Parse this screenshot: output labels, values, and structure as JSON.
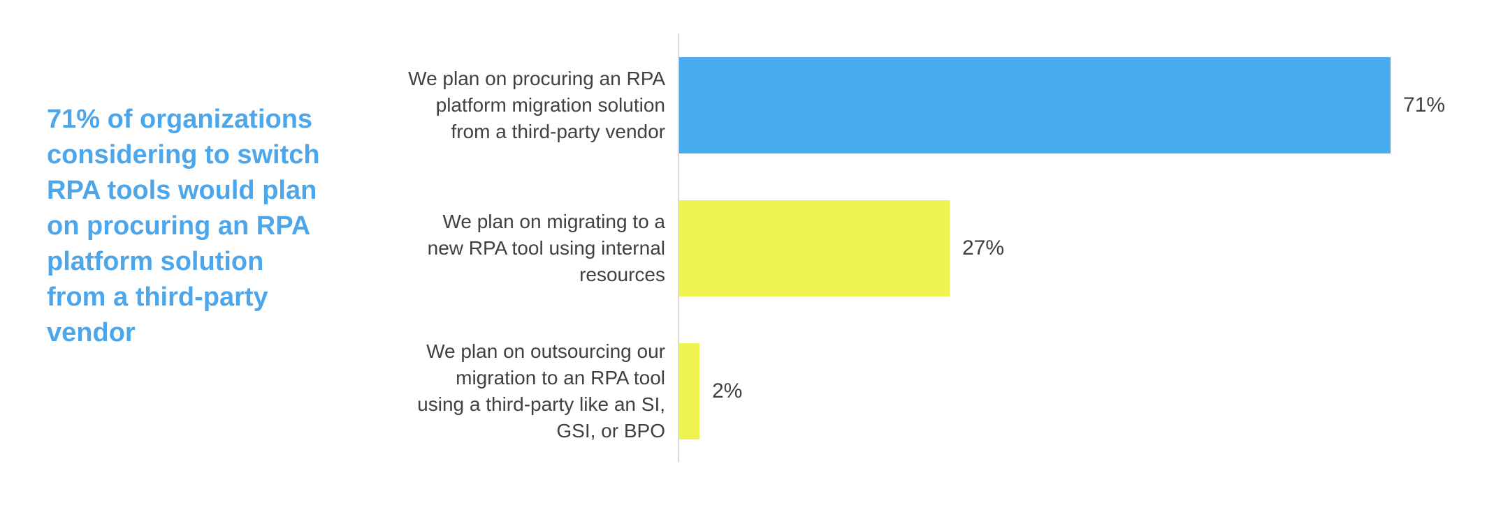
{
  "headline": {
    "text": "71% of organizations considering to switch RPA tools would plan on procuring an RPA platform solution from a third-party vendor",
    "lines": [
      "71% of organizations",
      "considering to switch",
      "RPA tools would plan",
      "on procuring an RPA",
      "platform solution",
      "from a third-party",
      "vendor"
    ],
    "color": "#4da6ea"
  },
  "chart_data": {
    "type": "bar",
    "orientation": "horizontal",
    "title": "",
    "xlabel": "",
    "ylabel": "",
    "categories": [
      "We plan on procuring an RPA platform migration solution from a third-party vendor",
      "We plan on migrating to a new RPA tool using internal resources",
      "We plan on outsourcing our migration to an RPA tool using a third-party like an SI, GSI, or BPO"
    ],
    "categories_wrapped": [
      [
        "We plan on procuring an RPA",
        "platform migration solution",
        "from a third-party vendor"
      ],
      [
        "We plan on migrating to a",
        "new RPA tool using internal",
        "resources"
      ],
      [
        "We plan on outsourcing our",
        "migration to an RPA tool",
        "using a third-party like an SI,",
        "GSI, or BPO"
      ]
    ],
    "values": [
      71,
      27,
      2
    ],
    "value_labels": [
      "71%",
      "27%",
      "2%"
    ],
    "bar_colors": [
      "#4aacf0",
      "#edf451",
      "#edf451"
    ],
    "xlim": [
      0,
      80
    ],
    "grid": false,
    "legend": false,
    "axis_line_color": "#d8d8e0",
    "label_color": "#404040"
  }
}
